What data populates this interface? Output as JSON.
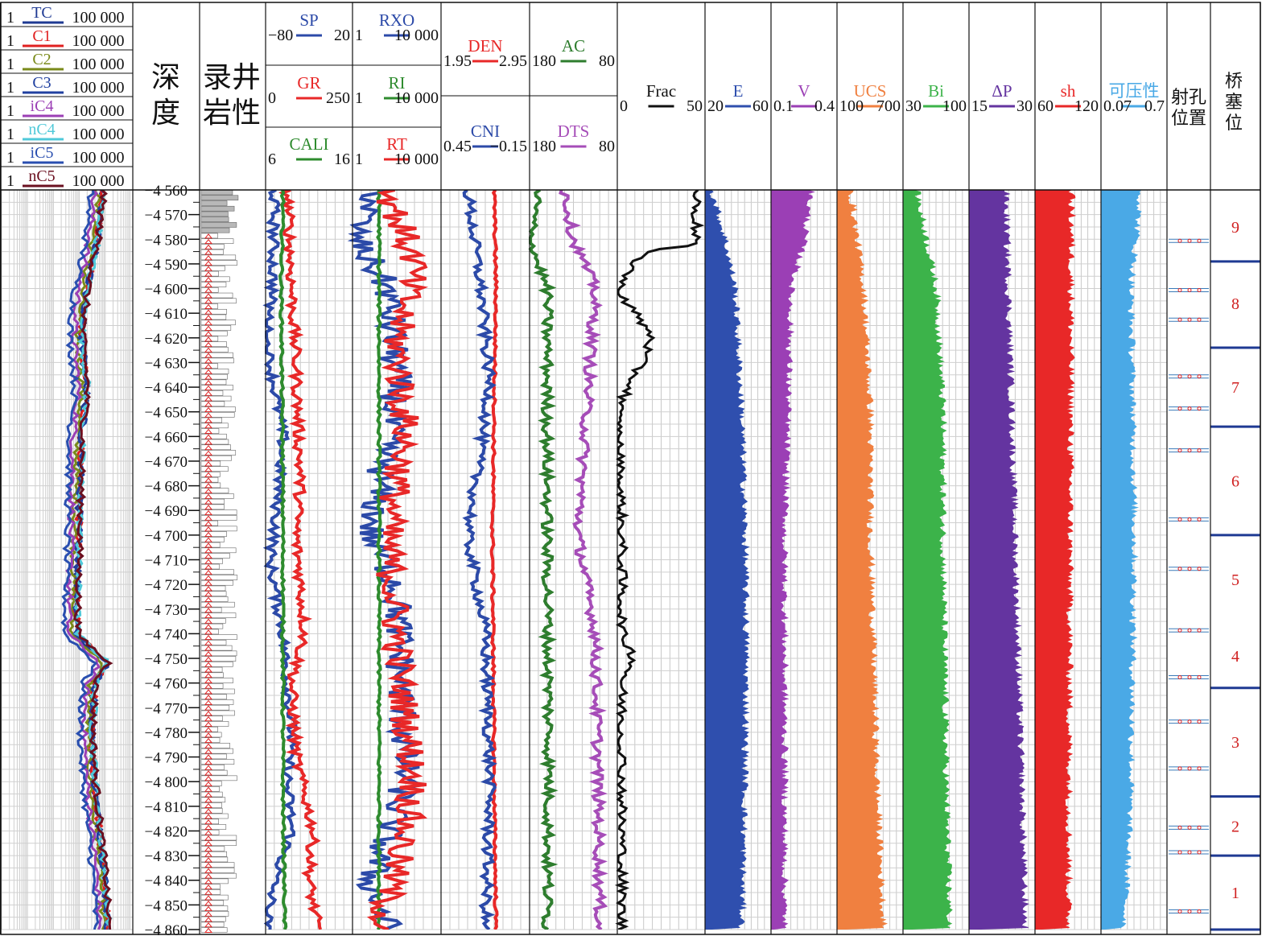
{
  "chart_data": {
    "type": "line",
    "title": "",
    "depth": {
      "label_lines": [
        "深",
        "度"
      ],
      "range": [
        4560,
        4860
      ],
      "step": 10,
      "tick_labels": [
        "4 560",
        "4 570",
        "4 580",
        "4 590",
        "4 600",
        "4 610",
        "4 620",
        "4 630",
        "4 640",
        "4 650",
        "4 660",
        "4 670",
        "4 680",
        "4 690",
        "4 700",
        "4 710",
        "4 720",
        "4 730",
        "4 740",
        "4 750",
        "4 760",
        "4 770",
        "4 780",
        "4 790",
        "4 800",
        "4 810",
        "4 820",
        "4 830",
        "4 840",
        "4 850",
        "4 860"
      ]
    },
    "lithology": {
      "label_lines": [
        "录井",
        "岩性"
      ]
    },
    "gas_track": {
      "scale": "log",
      "entries": [
        {
          "name": "TC",
          "min": "1",
          "max": "100 000",
          "color": "#1f3a93"
        },
        {
          "name": "C1",
          "min": "1",
          "max": "100 000",
          "color": "#e02020"
        },
        {
          "name": "C2",
          "min": "1",
          "max": "100 000",
          "color": "#7a8a1a"
        },
        {
          "name": "C3",
          "min": "1",
          "max": "100 000",
          "color": "#2040a0"
        },
        {
          "name": "iC4",
          "min": "1",
          "max": "100 000",
          "color": "#9b3fb5"
        },
        {
          "name": "nC4",
          "min": "1",
          "max": "100 000",
          "color": "#4fc9d9"
        },
        {
          "name": "iC5",
          "min": "1",
          "max": "100 000",
          "color": "#2a4fb0"
        },
        {
          "name": "nC5",
          "min": "1",
          "max": "100 000",
          "color": "#6b1020"
        }
      ],
      "profile": [
        [
          4560,
          4.2
        ],
        [
          4580,
          4.0
        ],
        [
          4600,
          3.6
        ],
        [
          4620,
          3.4
        ],
        [
          4640,
          3.6
        ],
        [
          4660,
          3.4
        ],
        [
          4700,
          3.3
        ],
        [
          4740,
          3.2
        ],
        [
          4752,
          4.4
        ],
        [
          4760,
          3.9
        ],
        [
          4780,
          3.8
        ],
        [
          4800,
          3.9
        ],
        [
          4820,
          4.1
        ],
        [
          4840,
          4.3
        ],
        [
          4860,
          4.4
        ]
      ]
    },
    "tracks": [
      {
        "id": "sp-gr-cali",
        "curves": [
          {
            "name": "SP",
            "min": "−80",
            "max": "20",
            "color": "#2c4aa8",
            "profile": [
              [
                4560,
                0.1
              ],
              [
                4600,
                0.08
              ],
              [
                4620,
                0.0
              ],
              [
                4640,
                0.1
              ],
              [
                4660,
                0.2
              ],
              [
                4680,
                0.15
              ],
              [
                4700,
                0.1
              ],
              [
                4710,
                0.05
              ],
              [
                4740,
                0.2
              ],
              [
                4780,
                0.3
              ],
              [
                4800,
                0.25
              ],
              [
                4820,
                0.3
              ],
              [
                4840,
                0.1
              ],
              [
                4860,
                0.0
              ]
            ]
          },
          {
            "name": "GR",
            "min": "0",
            "max": "250",
            "color": "#e82828",
            "profile": [
              [
                4560,
                0.25
              ],
              [
                4600,
                0.3
              ],
              [
                4630,
                0.35
              ],
              [
                4680,
                0.4
              ],
              [
                4700,
                0.35
              ],
              [
                4740,
                0.45
              ],
              [
                4760,
                0.3
              ],
              [
                4790,
                0.35
              ],
              [
                4820,
                0.55
              ],
              [
                4840,
                0.5
              ],
              [
                4860,
                0.6
              ]
            ]
          },
          {
            "name": "CALI",
            "min": "6",
            "max": "16",
            "color": "#2e8b2e",
            "profile": [
              [
                4560,
                0.2
              ],
              [
                4600,
                0.18
              ],
              [
                4700,
                0.2
              ],
              [
                4800,
                0.2
              ],
              [
                4860,
                0.22
              ]
            ]
          }
        ]
      },
      {
        "id": "rxo-ri-rt",
        "curves": [
          {
            "name": "RXO",
            "min": "1",
            "max": "10 000",
            "color": "#2c4aa8",
            "profile": [
              [
                4560,
                0.3
              ],
              [
                4578,
                0.0
              ],
              [
                4600,
                0.4
              ],
              [
                4640,
                0.5
              ],
              [
                4700,
                0.2
              ],
              [
                4720,
                0.5
              ],
              [
                4800,
                0.6
              ],
              [
                4840,
                0.2
              ],
              [
                4860,
                0.4
              ]
            ]
          },
          {
            "name": "RI",
            "min": "1",
            "max": "10 000",
            "color": "#2e8b2e",
            "profile": [
              [
                4560,
                0.3
              ],
              [
                4860,
                0.3
              ]
            ]
          },
          {
            "name": "RT",
            "min": "1",
            "max": "10 000",
            "color": "#e82828",
            "profile": [
              [
                4560,
                0.4
              ],
              [
                4590,
                0.7
              ],
              [
                4620,
                0.5
              ],
              [
                4660,
                0.6
              ],
              [
                4700,
                0.4
              ],
              [
                4740,
                0.5
              ],
              [
                4760,
                0.55
              ],
              [
                4800,
                0.7
              ],
              [
                4820,
                0.6
              ],
              [
                4860,
                0.3
              ]
            ]
          }
        ]
      },
      {
        "id": "den-cni",
        "curves": [
          {
            "name": "DEN",
            "min": "1.95",
            "max": "2.95",
            "color": "#e82828",
            "profile": [
              [
                4560,
                0.6
              ],
              [
                4600,
                0.62
              ],
              [
                4700,
                0.58
              ],
              [
                4800,
                0.6
              ],
              [
                4860,
                0.62
              ]
            ]
          },
          {
            "name": "CNI",
            "min": "0.45",
            "max": "−0.15",
            "color": "#2c4aa8",
            "profile": [
              [
                4560,
                0.3
              ],
              [
                4600,
                0.45
              ],
              [
                4640,
                0.55
              ],
              [
                4700,
                0.3
              ],
              [
                4740,
                0.5
              ],
              [
                4800,
                0.55
              ],
              [
                4860,
                0.5
              ]
            ]
          }
        ]
      },
      {
        "id": "ac-dts",
        "curves": [
          {
            "name": "AC",
            "min": "180",
            "max": "80",
            "color": "#2e7d2e",
            "profile": [
              [
                4560,
                0.1
              ],
              [
                4580,
                0.0
              ],
              [
                4600,
                0.2
              ],
              [
                4700,
                0.2
              ],
              [
                4800,
                0.22
              ],
              [
                4860,
                0.2
              ]
            ]
          },
          {
            "name": "DTS",
            "min": "180",
            "max": "80",
            "color": "#a64db8",
            "profile": [
              [
                4560,
                0.4
              ],
              [
                4580,
                0.5
              ],
              [
                4600,
                0.75
              ],
              [
                4700,
                0.55
              ],
              [
                4740,
                0.75
              ],
              [
                4800,
                0.78
              ],
              [
                4860,
                0.8
              ]
            ]
          }
        ]
      },
      {
        "id": "frac",
        "curves": [
          {
            "name": "Frac",
            "min": "0",
            "max": "50",
            "color": "#111111",
            "profile": [
              [
                4582,
                0.9
              ],
              [
                4585,
                0.3
              ],
              [
                4600,
                0.0
              ],
              [
                4620,
                0.4
              ],
              [
                4650,
                0.0
              ],
              [
                4700,
                0.05
              ],
              [
                4740,
                0.05
              ],
              [
                4750,
                0.2
              ],
              [
                4760,
                0.05
              ],
              [
                4800,
                0.05
              ],
              [
                4860,
                0.05
              ]
            ]
          }
        ]
      }
    ],
    "fill_tracks": [
      {
        "name": "E",
        "min": "20",
        "max": "60",
        "color": "#2f4fae",
        "profile": [
          [
            4560,
            0.1
          ],
          [
            4580,
            0.3
          ],
          [
            4600,
            0.45
          ],
          [
            4650,
            0.55
          ],
          [
            4700,
            0.6
          ],
          [
            4750,
            0.62
          ],
          [
            4800,
            0.6
          ],
          [
            4860,
            0.55
          ]
        ]
      },
      {
        "name": "V",
        "min": "0.1",
        "max": "0.4",
        "color": "#9b3fb5",
        "profile": [
          [
            4560,
            0.6
          ],
          [
            4580,
            0.5
          ],
          [
            4600,
            0.3
          ],
          [
            4650,
            0.25
          ],
          [
            4700,
            0.2
          ],
          [
            4800,
            0.2
          ],
          [
            4860,
            0.2
          ]
        ]
      },
      {
        "name": "UCS",
        "min": "100",
        "max": "700",
        "color": "#f08040",
        "profile": [
          [
            4560,
            0.2
          ],
          [
            4600,
            0.4
          ],
          [
            4650,
            0.5
          ],
          [
            4700,
            0.5
          ],
          [
            4800,
            0.6
          ],
          [
            4860,
            0.7
          ]
        ]
      },
      {
        "name": "Bi",
        "min": "30",
        "max": "100",
        "color": "#3cb34a",
        "profile": [
          [
            4560,
            0.2
          ],
          [
            4600,
            0.5
          ],
          [
            4650,
            0.6
          ],
          [
            4700,
            0.6
          ],
          [
            4800,
            0.65
          ],
          [
            4860,
            0.7
          ]
        ]
      },
      {
        "name": "ΔP",
        "min": "15",
        "max": "30",
        "color": "#6434a0",
        "profile": [
          [
            4560,
            0.55
          ],
          [
            4860,
            0.85
          ]
        ]
      },
      {
        "name": "sh",
        "min": "60",
        "max": "120",
        "color": "#e82828",
        "profile": [
          [
            4560,
            0.55
          ],
          [
            4860,
            0.5
          ]
        ]
      },
      {
        "name": "可压性",
        "min": "0.07",
        "max": "0.7",
        "color": "#4aa9e6",
        "profile": [
          [
            4560,
            0.6
          ],
          [
            4600,
            0.45
          ],
          [
            4700,
            0.5
          ],
          [
            4800,
            0.45
          ],
          [
            4860,
            0.35
          ]
        ]
      }
    ],
    "perforation": {
      "label_lines": [
        "射孔",
        "位置"
      ]
    },
    "bridge_plug": {
      "label_lines": [
        "桥",
        "塞",
        "位"
      ],
      "boundaries": [
        4589,
        4624,
        4656,
        4700,
        4762,
        4806,
        4830,
        4860
      ],
      "stages": [
        {
          "label": "9",
          "center": 4575
        },
        {
          "label": "8",
          "center": 4606
        },
        {
          "label": "7",
          "center": 4640
        },
        {
          "label": "6",
          "center": 4678
        },
        {
          "label": "5",
          "center": 4718
        },
        {
          "label": "4",
          "center": 4749
        },
        {
          "label": "3",
          "center": 4784
        },
        {
          "label": "2",
          "center": 4818
        },
        {
          "label": "1",
          "center": 4845
        }
      ]
    },
    "ylim": [
      4560,
      4860
    ]
  }
}
